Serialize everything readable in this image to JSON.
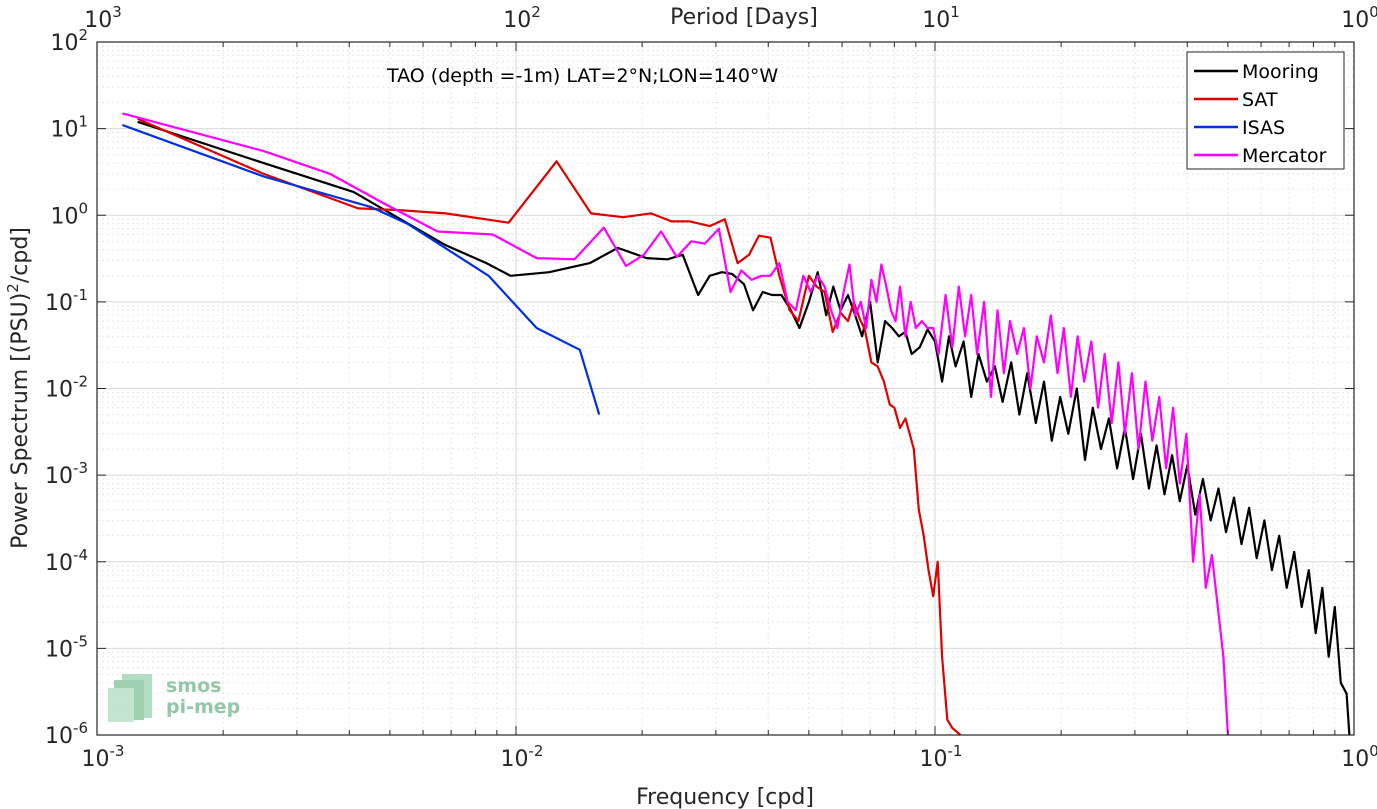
{
  "chart_data": {
    "type": "line",
    "title": "",
    "annotation": "TAO (depth =-1m) LAT=2°N;LON=140°W",
    "xlabel": "Frequency [cpd]",
    "ylabel_pre": "Power Spectrum [(PSU)",
    "ylabel_sup": "2",
    "ylabel_post": "/cpd]",
    "x2label": "Period [Days]",
    "xscale": "log",
    "yscale": "log",
    "xlim": [
      0.001,
      1
    ],
    "ylim": [
      1e-06,
      100
    ],
    "grid": true,
    "legend_position": "top-right",
    "xticks": [
      {
        "value": 0.001,
        "base": "10",
        "exp": "-3"
      },
      {
        "value": 0.01,
        "base": "10",
        "exp": "-2"
      },
      {
        "value": 0.1,
        "base": "10",
        "exp": "-1"
      },
      {
        "value": 1,
        "base": "10",
        "exp": "0"
      }
    ],
    "yticks": [
      {
        "value": 1e-06,
        "base": "10",
        "exp": "-6"
      },
      {
        "value": 1e-05,
        "base": "10",
        "exp": "-5"
      },
      {
        "value": 0.0001,
        "base": "10",
        "exp": "-4"
      },
      {
        "value": 0.001,
        "base": "10",
        "exp": "-3"
      },
      {
        "value": 0.01,
        "base": "10",
        "exp": "-2"
      },
      {
        "value": 0.1,
        "base": "10",
        "exp": "-1"
      },
      {
        "value": 1,
        "base": "10",
        "exp": "0"
      },
      {
        "value": 10,
        "base": "10",
        "exp": "1"
      },
      {
        "value": 100,
        "base": "10",
        "exp": "2"
      }
    ],
    "x2ticks": [
      {
        "value": 0.001,
        "base": "10",
        "exp": "3"
      },
      {
        "value": 0.01,
        "base": "10",
        "exp": "2"
      },
      {
        "value": 0.1,
        "base": "10",
        "exp": "1"
      },
      {
        "value": 1,
        "base": "10",
        "exp": "0"
      }
    ],
    "series": [
      {
        "name": "Mooring",
        "color": "#000000",
        "x": [
          0.00125,
          0.0025,
          0.0041,
          0.0052,
          0.0068,
          0.0085,
          0.0097,
          0.012,
          0.015,
          0.0175,
          0.0205,
          0.023,
          0.025,
          0.0272,
          0.029,
          0.031,
          0.0328,
          0.035,
          0.0368,
          0.0388,
          0.0408,
          0.043,
          0.045,
          0.0475,
          0.05,
          0.0525,
          0.055,
          0.0572,
          0.0595,
          0.062,
          0.0645,
          0.067,
          0.07,
          0.073,
          0.076,
          0.079,
          0.082,
          0.085,
          0.088,
          0.092,
          0.096,
          0.1,
          0.104,
          0.108,
          0.112,
          0.117,
          0.122,
          0.127,
          0.133,
          0.139,
          0.145,
          0.152,
          0.159,
          0.166,
          0.174,
          0.182,
          0.19,
          0.199,
          0.208,
          0.218,
          0.228,
          0.238,
          0.249,
          0.26,
          0.272,
          0.284,
          0.297,
          0.31,
          0.324,
          0.338,
          0.353,
          0.368,
          0.384,
          0.4,
          0.418,
          0.436,
          0.455,
          0.475,
          0.495,
          0.517,
          0.539,
          0.562,
          0.586,
          0.611,
          0.637,
          0.663,
          0.691,
          0.72,
          0.75,
          0.78,
          0.81,
          0.84,
          0.87,
          0.9,
          0.93,
          0.96,
          0.975
        ],
        "values": [
          12,
          4.0,
          1.85,
          0.95,
          0.45,
          0.28,
          0.2,
          0.22,
          0.28,
          0.42,
          0.32,
          0.31,
          0.35,
          0.12,
          0.2,
          0.22,
          0.21,
          0.16,
          0.08,
          0.13,
          0.12,
          0.12,
          0.085,
          0.05,
          0.1,
          0.22,
          0.07,
          0.15,
          0.08,
          0.12,
          0.07,
          0.04,
          0.1,
          0.02,
          0.06,
          0.05,
          0.04,
          0.045,
          0.025,
          0.03,
          0.048,
          0.035,
          0.012,
          0.04,
          0.018,
          0.035,
          0.008,
          0.025,
          0.012,
          0.018,
          0.007,
          0.02,
          0.005,
          0.015,
          0.004,
          0.012,
          0.0025,
          0.008,
          0.003,
          0.01,
          0.0015,
          0.006,
          0.002,
          0.0045,
          0.0012,
          0.0035,
          0.0009,
          0.003,
          0.0007,
          0.0022,
          0.0006,
          0.0017,
          0.0005,
          0.0013,
          0.00035,
          0.0009,
          0.0003,
          0.0007,
          0.00022,
          0.00055,
          0.00016,
          0.00042,
          0.00011,
          0.0003,
          8e-05,
          0.0002,
          5e-05,
          0.00013,
          3e-05,
          8e-05,
          1.5e-05,
          5e-05,
          8e-06,
          3e-05,
          4e-06,
          3e-06,
          1e-06
        ]
      },
      {
        "name": "SAT",
        "color": "#e00000",
        "x": [
          0.00125,
          0.0025,
          0.0042,
          0.0052,
          0.0068,
          0.0096,
          0.0125,
          0.0151,
          0.018,
          0.021,
          0.0235,
          0.026,
          0.029,
          0.0315,
          0.0338,
          0.036,
          0.038,
          0.0405,
          0.0425,
          0.045,
          0.0472,
          0.05,
          0.0522,
          0.0545,
          0.057,
          0.0595,
          0.062,
          0.064,
          0.066,
          0.068,
          0.0705,
          0.073,
          0.0755,
          0.078,
          0.08,
          0.0825,
          0.085,
          0.087,
          0.089,
          0.0915,
          0.094,
          0.0965,
          0.099,
          0.1015,
          0.104,
          0.107,
          0.11,
          0.115
        ],
        "values": [
          13,
          3.0,
          1.2,
          1.15,
          1.05,
          0.82,
          4.2,
          1.05,
          0.95,
          1.05,
          0.85,
          0.85,
          0.75,
          0.9,
          0.28,
          0.35,
          0.58,
          0.55,
          0.2,
          0.08,
          0.06,
          0.2,
          0.15,
          0.13,
          0.045,
          0.075,
          0.06,
          0.1,
          0.065,
          0.048,
          0.02,
          0.018,
          0.012,
          0.0065,
          0.006,
          0.0035,
          0.0045,
          0.003,
          0.002,
          0.0004,
          0.0002,
          8e-05,
          4e-05,
          0.0001,
          8e-06,
          1.5e-06,
          1.2e-06,
          1e-06
        ]
      },
      {
        "name": "ISAS",
        "color": "#0030e0",
        "x": [
          0.00115,
          0.0025,
          0.0045,
          0.0055,
          0.0086,
          0.0112,
          0.0142,
          0.0158
        ],
        "values": [
          11,
          2.8,
          1.25,
          0.8,
          0.2,
          0.05,
          0.028,
          0.005
        ]
      },
      {
        "name": "Mercator",
        "color": "#ff00ff",
        "x": [
          0.00115,
          0.0025,
          0.0036,
          0.0048,
          0.0065,
          0.0088,
          0.0112,
          0.0138,
          0.0162,
          0.0183,
          0.0202,
          0.0222,
          0.0242,
          0.0262,
          0.0282,
          0.0305,
          0.0325,
          0.0345,
          0.0365,
          0.0385,
          0.0405,
          0.0425,
          0.0445,
          0.0465,
          0.0485,
          0.0505,
          0.0525,
          0.0545,
          0.0565,
          0.0585,
          0.0605,
          0.0625,
          0.0645,
          0.0665,
          0.0685,
          0.0705,
          0.0725,
          0.0745,
          0.0765,
          0.0785,
          0.0805,
          0.0825,
          0.085,
          0.0875,
          0.09,
          0.093,
          0.096,
          0.099,
          0.102,
          0.106,
          0.11,
          0.114,
          0.118,
          0.122,
          0.126,
          0.131,
          0.136,
          0.141,
          0.146,
          0.151,
          0.157,
          0.163,
          0.169,
          0.175,
          0.182,
          0.189,
          0.196,
          0.203,
          0.211,
          0.219,
          0.227,
          0.236,
          0.245,
          0.254,
          0.264,
          0.274,
          0.284,
          0.295,
          0.306,
          0.318,
          0.33,
          0.343,
          0.356,
          0.37,
          0.384,
          0.398,
          0.413,
          0.428,
          0.443,
          0.458,
          0.473,
          0.488,
          0.5
        ],
        "values": [
          15,
          5.5,
          3.0,
          1.4,
          0.65,
          0.6,
          0.32,
          0.31,
          0.72,
          0.26,
          0.35,
          0.65,
          0.33,
          0.5,
          0.47,
          0.7,
          0.13,
          0.23,
          0.18,
          0.2,
          0.2,
          0.28,
          0.1,
          0.08,
          0.2,
          0.13,
          0.2,
          0.15,
          0.08,
          0.05,
          0.13,
          0.27,
          0.07,
          0.1,
          0.05,
          0.18,
          0.1,
          0.27,
          0.15,
          0.08,
          0.06,
          0.15,
          0.04,
          0.1,
          0.05,
          0.06,
          0.05,
          0.05,
          0.025,
          0.12,
          0.03,
          0.15,
          0.04,
          0.12,
          0.025,
          0.1,
          0.008,
          0.08,
          0.015,
          0.06,
          0.025,
          0.05,
          0.01,
          0.04,
          0.02,
          0.07,
          0.015,
          0.05,
          0.008,
          0.04,
          0.012,
          0.035,
          0.006,
          0.025,
          0.004,
          0.02,
          0.003,
          0.015,
          0.002,
          0.012,
          0.0025,
          0.008,
          0.0012,
          0.006,
          0.0008,
          0.003,
          0.0001,
          0.0006,
          5e-05,
          0.00012,
          3e-05,
          8e-06,
          1e-06
        ]
      }
    ]
  },
  "logo": {
    "line1": "smos",
    "line2": "pi-mep"
  }
}
